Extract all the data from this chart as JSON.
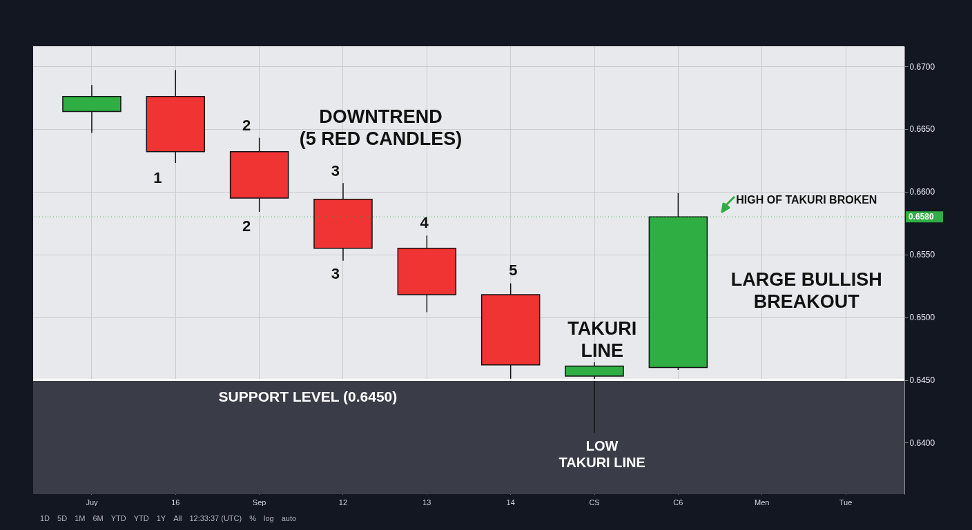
{
  "chart_data": {
    "type": "candlestick",
    "categories": [
      "Juy",
      "16",
      "Sep",
      "12",
      "13",
      "14",
      "CS",
      "C6",
      "Men",
      "Tue"
    ],
    "ohlc": [
      [
        0.6664,
        0.6685,
        0.6647,
        0.6676
      ],
      [
        0.6676,
        0.6697,
        0.6623,
        0.6632
      ],
      [
        0.6632,
        0.6643,
        0.6584,
        0.6595
      ],
      [
        0.6594,
        0.6607,
        0.6545,
        0.6555
      ],
      [
        0.6555,
        0.6565,
        0.6504,
        0.6518
      ],
      [
        0.6518,
        0.6527,
        0.6451,
        0.6462
      ],
      [
        0.6453,
        0.6464,
        0.6408,
        0.6461
      ],
      [
        0.646,
        0.6599,
        0.6458,
        0.658
      ],
      null,
      null
    ],
    "colors": [
      "#2eae43",
      "#f03333",
      "#f03333",
      "#f03333",
      "#f03333",
      "#f03333",
      "#2eae43",
      "#2eae43",
      null,
      null
    ],
    "ylim": [
      0.6359,
      0.6716
    ],
    "yticks": [
      {
        "value": 0.64,
        "label": "0.6400"
      },
      {
        "value": 0.645,
        "label": "0.6450"
      },
      {
        "value": 0.65,
        "label": "0.6500"
      },
      {
        "value": 0.655,
        "label": "0.6550"
      },
      {
        "value": 0.66,
        "label": "0.6600"
      },
      {
        "value": 0.665,
        "label": "0.6650"
      },
      {
        "value": 0.67,
        "label": "0.6700"
      }
    ],
    "grid": true,
    "ref_lines": [
      {
        "axis": "y",
        "value": 0.658,
        "label": "0.6580",
        "color": "#2eae43",
        "line_style": "dotted"
      },
      {
        "axis": "y",
        "value": 0.645,
        "color": "#ffffff",
        "line_style": "solid"
      }
    ],
    "bands": [
      {
        "axis": "y",
        "from": 0.6359,
        "to": 0.645,
        "color": "#3a3d47"
      }
    ],
    "annotations": [
      "DOWNTREND\n(5 RED CANDLES)",
      "1",
      "2",
      "2",
      "3",
      "3",
      "4",
      "5",
      "TAKURI\nLINE",
      "HIGH OF TAKURI BROKEN",
      "LARGE BULLISH\nBREAKOUT",
      "SUPPORT LEVEL (0.6450)",
      "LOW\nTAKURI LINE",
      "1D",
      "5D",
      "1M",
      "6M",
      "YTD",
      "YTD",
      "1Y",
      "All",
      "12:33:37 (UTC)",
      "%",
      "log",
      "auto"
    ]
  }
}
